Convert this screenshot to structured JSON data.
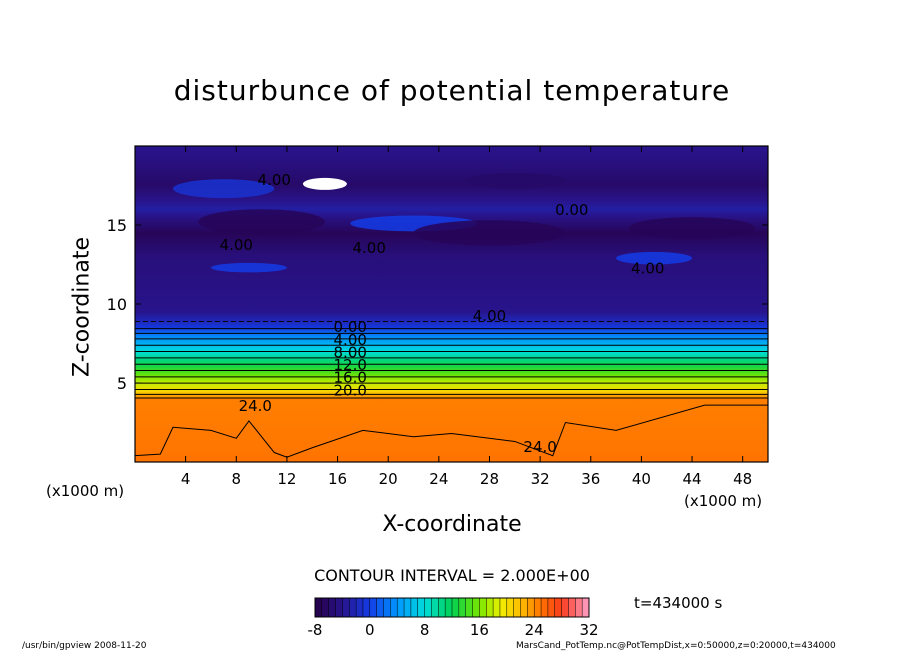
{
  "chart_data": {
    "type": "contour",
    "title": "disturbunce of potential temperature",
    "xlabel": "X-coordinate",
    "ylabel": "Z-coordinate",
    "x_unit_left": "(x1000 m)",
    "x_unit_right": "(x1000 m)",
    "xlim": [
      0,
      50
    ],
    "ylim": [
      0,
      20
    ],
    "x_ticks": [
      4,
      8,
      12,
      16,
      20,
      24,
      28,
      32,
      36,
      40,
      44,
      48
    ],
    "y_ticks": [
      5,
      10,
      15
    ],
    "contour_interval_text": "CONTOUR INTERVAL = 2.000E+00",
    "contour_interval": 2.0,
    "time_label": "t=434000 s",
    "colorbar": {
      "min": -8,
      "max": 32,
      "tick_values": [
        -8,
        0,
        8,
        16,
        24,
        32
      ],
      "tick_labels": [
        "-8",
        "0",
        "8",
        "16",
        "24",
        "32"
      ]
    },
    "contour_labels": [
      {
        "text": "4.00",
        "x": 11.0,
        "z": 17.9
      },
      {
        "text": "0.00",
        "x": 34.5,
        "z": 16.0
      },
      {
        "text": "4.00",
        "x": 8.0,
        "z": 13.8
      },
      {
        "text": "4.00",
        "x": 18.5,
        "z": 13.6
      },
      {
        "text": "4.00",
        "x": 40.5,
        "z": 12.3
      },
      {
        "text": "4.00",
        "x": 28.0,
        "z": 9.3
      },
      {
        "text": "0.00",
        "x": 17.0,
        "z": 8.6
      },
      {
        "text": "4.00",
        "x": 17.0,
        "z": 7.8
      },
      {
        "text": "8.00",
        "x": 17.0,
        "z": 7.0
      },
      {
        "text": "12.0",
        "x": 17.0,
        "z": 6.2
      },
      {
        "text": "16.0",
        "x": 17.0,
        "z": 5.4
      },
      {
        "text": "20.0",
        "x": 17.0,
        "z": 4.6
      },
      {
        "text": "24.0",
        "x": 9.5,
        "z": 3.6
      },
      {
        "text": "24.0",
        "x": 32.0,
        "z": 1.0
      }
    ],
    "profile": {
      "z": [
        0,
        4.0,
        4.4,
        5,
        6,
        7,
        8,
        8.6,
        9.5,
        11,
        13,
        14.5,
        16,
        17.5,
        19.9
      ],
      "value": [
        25,
        24.5,
        21,
        18,
        13,
        8,
        3,
        -1,
        -4,
        -4.5,
        -5,
        -7,
        -3,
        -6,
        -4
      ]
    },
    "notes": []
  },
  "footer": {
    "left": "/usr/bin/gpview   2008-11-20",
    "right": "MarsCand_PotTemp.nc@PotTempDist,x=0:50000,z=0:20000,t=434000"
  }
}
